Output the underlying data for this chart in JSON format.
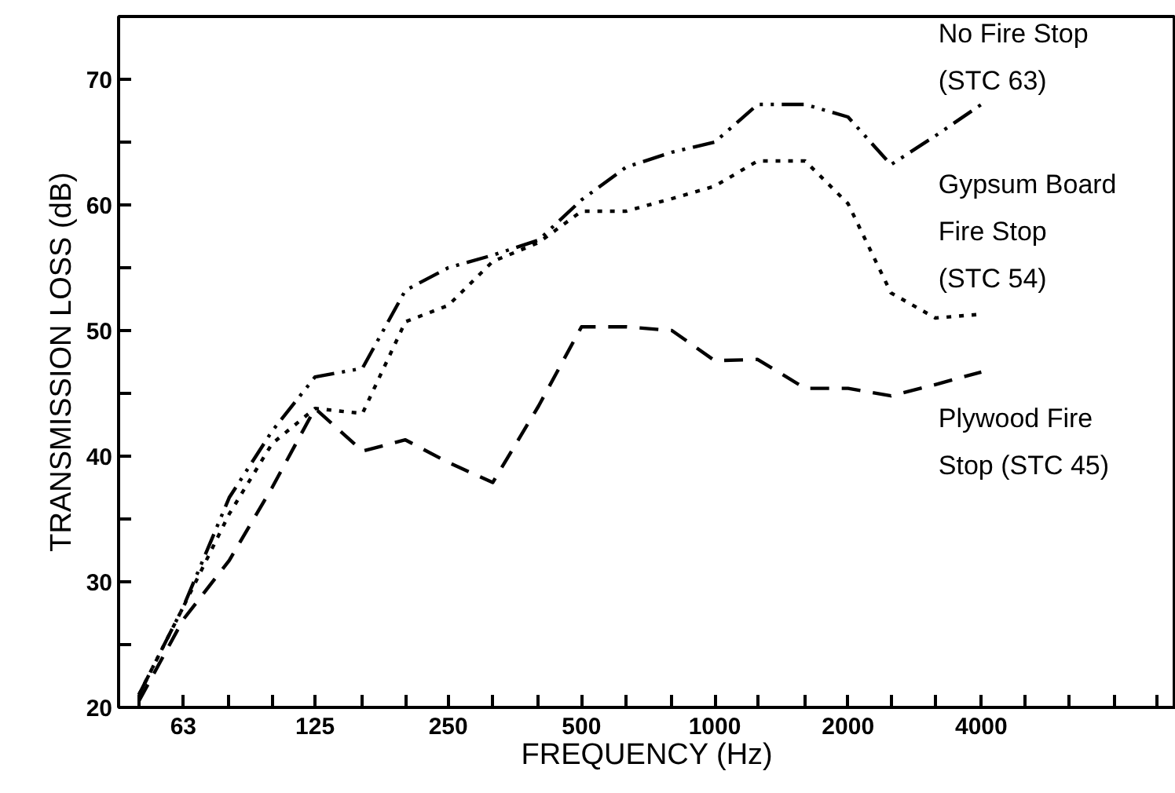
{
  "chart_data": {
    "type": "line",
    "xlabel": "FREQUENCY (Hz)",
    "ylabel": "TRANSMISSION LOSS (dB)",
    "log": "x",
    "grid": false,
    "marker": "none",
    "x": [
      50,
      63,
      80,
      100,
      125,
      160,
      200,
      250,
      315,
      400,
      500,
      630,
      800,
      1000,
      1250,
      1600,
      2000,
      2500,
      3150,
      4000
    ],
    "xlim": [
      45,
      11000
    ],
    "ylim": [
      20,
      75
    ],
    "xticks": [
      {
        "value": 50,
        "label": null
      },
      63,
      {
        "value": 80,
        "label": null
      },
      {
        "value": 100,
        "label": null
      },
      125,
      {
        "value": 160,
        "label": null
      },
      {
        "value": 200,
        "label": null
      },
      250,
      {
        "value": 315,
        "label": null
      },
      {
        "value": 400,
        "label": null
      },
      500,
      {
        "value": 630,
        "label": null
      },
      {
        "value": 800,
        "label": null
      },
      1000,
      {
        "value": 1250,
        "label": null
      },
      {
        "value": 1600,
        "label": null
      },
      2000,
      {
        "value": 2500,
        "label": null
      },
      {
        "value": 3150,
        "label": null
      },
      4000,
      {
        "value": 5000,
        "label": null
      },
      {
        "value": 6300,
        "label": null
      },
      {
        "value": 8000,
        "label": null
      },
      {
        "value": 10000,
        "label": null
      }
    ],
    "yticks": [
      20,
      {
        "value": 25,
        "label": null
      },
      30,
      {
        "value": 35,
        "label": null
      },
      40,
      {
        "value": 45,
        "label": null
      },
      50,
      {
        "value": 55,
        "label": null
      },
      60,
      {
        "value": 65,
        "label": null
      },
      70
    ],
    "series": [
      {
        "name": "No Fire Stop (STC 63)",
        "color": "#000000",
        "line_style": "dashdot",
        "values": [
          21,
          28,
          36.7,
          42,
          46.3,
          47,
          53.2,
          55,
          56,
          57.2,
          60.4,
          63,
          64.2,
          65,
          68,
          68,
          67,
          63.2,
          65.5,
          68
        ]
      },
      {
        "name": "Gypsum Board Fire Stop (STC 54)",
        "color": "#000000",
        "line_style": "dotted",
        "values": [
          21,
          28,
          35.4,
          41,
          43.8,
          43.4,
          50.7,
          52,
          55.5,
          57,
          59.5,
          59.5,
          60.5,
          61.5,
          63.5,
          63.5,
          60.1,
          53,
          51,
          51.3
        ]
      },
      {
        "name": "Plywood Fire Stop (STC 45)",
        "color": "#000000",
        "line_style": "dashed",
        "values": [
          20.5,
          27,
          31.7,
          37.5,
          43.8,
          40.4,
          41.3,
          39.5,
          37.9,
          44,
          50.3,
          50.3,
          50,
          47.6,
          47.7,
          45.4,
          45.4,
          44.8,
          45.7,
          46.7
        ]
      }
    ]
  }
}
